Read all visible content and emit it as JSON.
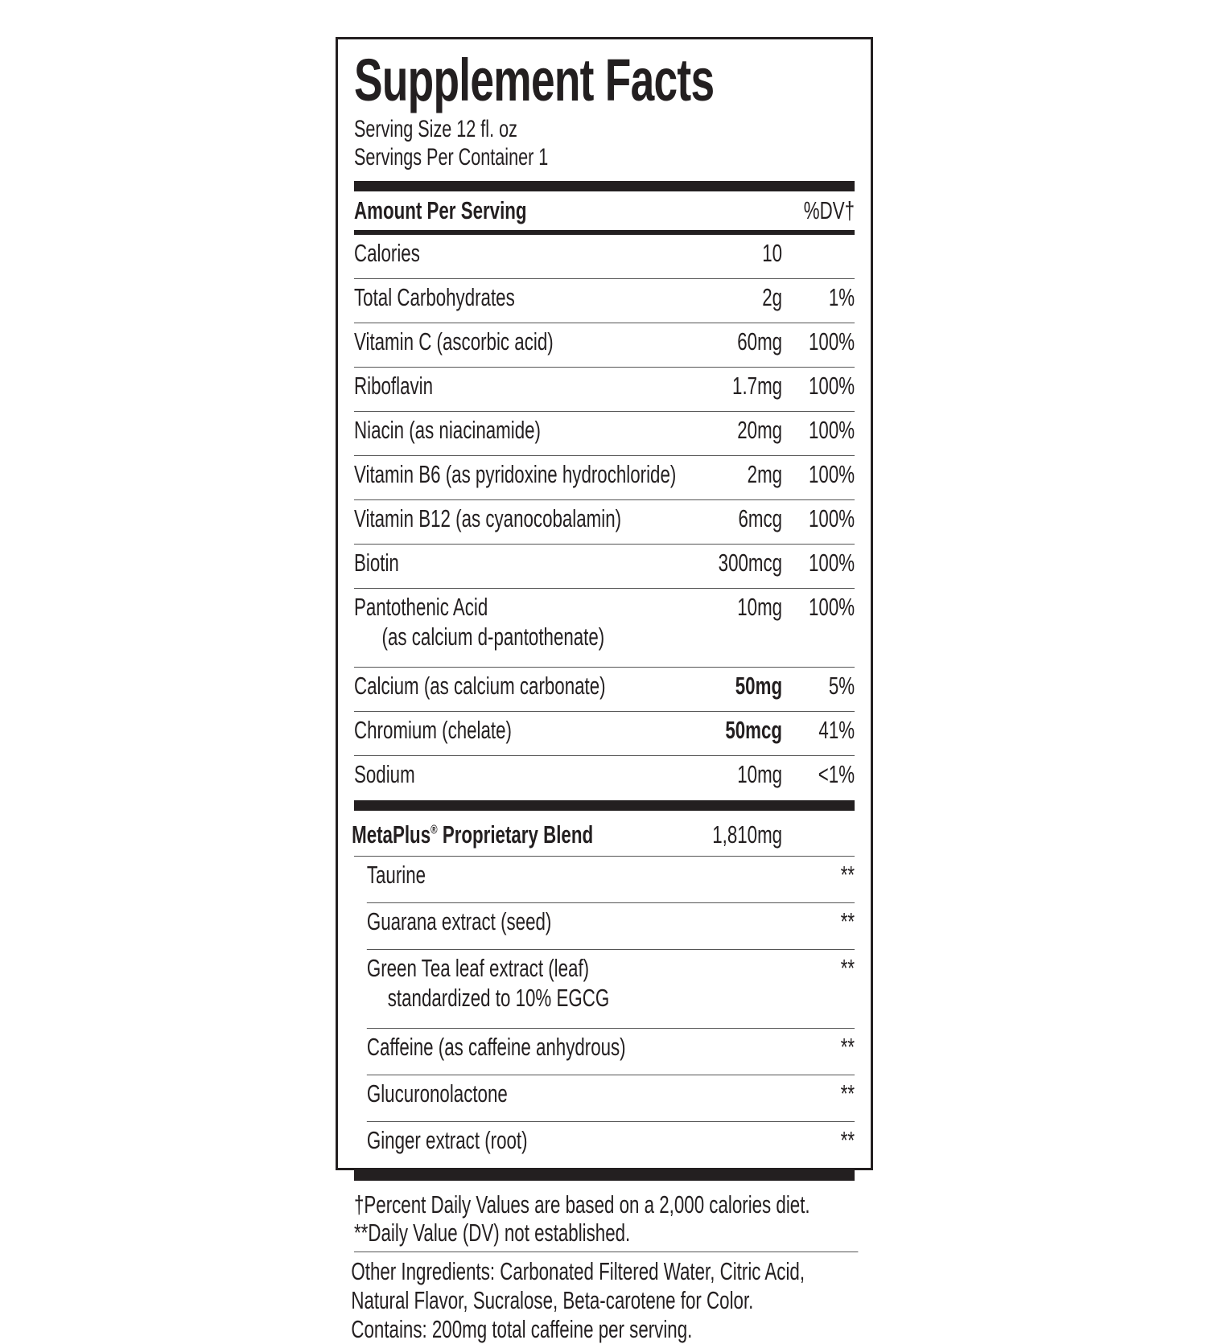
{
  "title": "Supplement Facts",
  "serving_size": "Serving Size 12 fl. oz",
  "servings_per_container": "Servings Per Container 1",
  "header": {
    "amount": "Amount Per Serving",
    "dv": "%DV†"
  },
  "nutrients": [
    {
      "name": "Calories",
      "amount": "10",
      "dv": ""
    },
    {
      "name": "Total Carbohydrates",
      "amount": "2g",
      "dv": "1%"
    },
    {
      "name": "Vitamin C (ascorbic acid)",
      "amount": "60mg",
      "dv": "100%"
    },
    {
      "name": "Riboflavin",
      "amount": "1.7mg",
      "dv": "100%"
    },
    {
      "name": "Niacin (as niacinamide)",
      "amount": "20mg",
      "dv": "100%"
    },
    {
      "name": "Vitamin B6 (as pyridoxine hydrochloride)",
      "amount": "2mg",
      "dv": "100%"
    },
    {
      "name": "Vitamin B12 (as cyanocobalamin)",
      "amount": "6mcg",
      "dv": "100%"
    },
    {
      "name": "Biotin",
      "amount": "300mcg",
      "dv": "100%"
    },
    {
      "name": "Pantothenic Acid",
      "sub": "(as calcium d-pantothenate)",
      "amount": "10mg",
      "dv": "100%"
    },
    {
      "name": "Calcium (as calcium carbonate)",
      "amount": "50mg",
      "dv": "5%",
      "bold": true
    },
    {
      "name": "Chromium (chelate)",
      "amount": "50mcg",
      "dv": "41%",
      "bold": true
    },
    {
      "name": "Sodium",
      "amount": "10mg",
      "dv": "<1%"
    }
  ],
  "blend": {
    "name": "MetaPlus",
    "reg": "®",
    "suffix": " Proprietary Blend",
    "amount": "1,810mg"
  },
  "blend_items": [
    {
      "name": "Taurine",
      "dv": "**"
    },
    {
      "name": "Guarana extract (seed)",
      "dv": "**"
    },
    {
      "name": "Green Tea leaf extract (leaf)",
      "sub": "standardized to 10% EGCG",
      "dv": "**"
    },
    {
      "name": "Caffeine (as caffeine anhydrous)",
      "dv": "**"
    },
    {
      "name": "Glucuronolactone",
      "dv": "**"
    },
    {
      "name": "Ginger extract (root)",
      "dv": "**"
    }
  ],
  "footnotes": [
    "†Percent Daily Values are based on a 2,000 calories diet.",
    "**Daily Value (DV) not established."
  ],
  "other_ingredients": [
    "Other Ingredients: Carbonated Filtered Water, Citric Acid,",
    "Natural Flavor, Sucralose, Beta-carotene for Color.",
    "Contains: 200mg total caffeine per serving."
  ]
}
